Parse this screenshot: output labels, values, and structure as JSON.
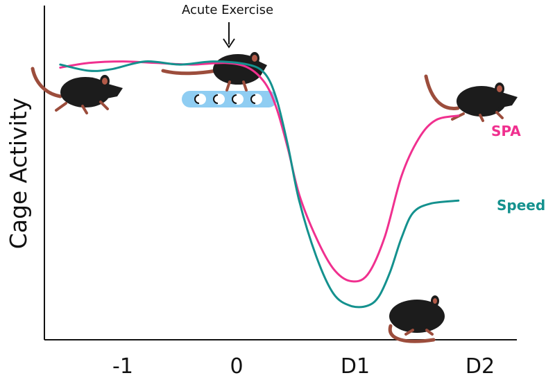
{
  "chart_data": {
    "type": "line",
    "title": "",
    "xlabel": "",
    "ylabel": "Cage Activity",
    "categories": [
      "-1",
      "0",
      "D1",
      "D2"
    ],
    "x_range": [
      -1.55,
      2.0
    ],
    "y_range": [
      0,
      100
    ],
    "grid": false,
    "legend": "inline labels at line ends (right)",
    "annotations": [
      {
        "text": "Acute Exercise",
        "x": 0,
        "style": "down-arrow"
      }
    ],
    "series": [
      {
        "name": "SPA",
        "color": "#f0308f",
        "x": [
          -1.55,
          -1.3,
          -1.0,
          -0.7,
          -0.4,
          -0.1,
          0.1,
          0.25,
          0.35,
          0.45,
          0.55,
          0.7,
          0.85,
          1.0,
          1.15,
          1.3,
          1.45,
          1.6,
          1.75,
          1.95
        ],
        "y": [
          88,
          89.5,
          90,
          89.5,
          89,
          89.5,
          88,
          83,
          75,
          62,
          47,
          33,
          23,
          19,
          21,
          33,
          53,
          65,
          71,
          72.5
        ]
      },
      {
        "name": "Speed",
        "color": "#14918e",
        "x": [
          -1.55,
          -1.3,
          -1.1,
          -0.8,
          -0.5,
          -0.2,
          0.1,
          0.25,
          0.35,
          0.45,
          0.55,
          0.7,
          0.85,
          1.0,
          1.15,
          1.25,
          1.35,
          1.45,
          1.55,
          1.7,
          1.95
        ],
        "y": [
          89,
          87,
          87.5,
          90,
          89,
          90,
          89,
          86,
          78,
          63,
          45,
          27,
          15,
          11,
          11,
          14,
          22,
          33,
          41,
          44,
          45
        ]
      }
    ]
  },
  "palette": {
    "axis": "#111111",
    "treadmill": "#8fcdf2",
    "mouse": "#1c1c1c",
    "tail": "#9c4d3c"
  },
  "icons": [
    "mouse-icon",
    "treadmill-icon",
    "down-arrow-icon"
  ]
}
